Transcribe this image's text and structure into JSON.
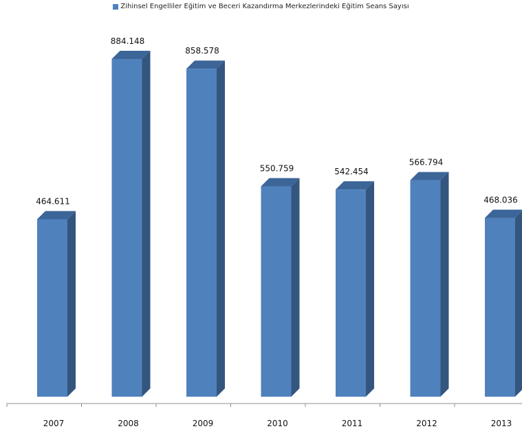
{
  "chart_data": {
    "type": "bar",
    "title": "",
    "xlabel": "",
    "ylabel": "",
    "categories": [
      "2007",
      "2008",
      "2009",
      "2010",
      "2011",
      "2012",
      "2013"
    ],
    "series": [
      {
        "name": "Zihinsel Engelliler Eğitim ve Beceri Kazandırma Merkezlerindeki Eğitim Seans Sayısı",
        "values": [
          464611,
          884148,
          858578,
          550759,
          542454,
          566794,
          468036
        ],
        "labels": [
          "464.611",
          "884.148",
          "858.578",
          "550.759",
          "542.454",
          "566.794",
          "468.036"
        ],
        "color": "#4F81BD"
      }
    ],
    "ylim": [
      0,
      900000
    ],
    "grid": false,
    "legend": "top",
    "style": "3d-bar"
  }
}
